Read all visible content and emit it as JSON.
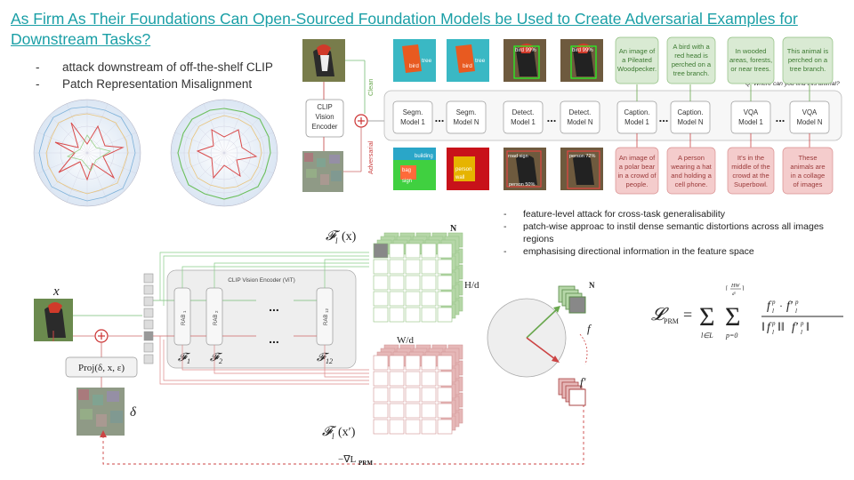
{
  "title": "As Firm As Their Foundations Can Open-Sourced Foundation Models be Used to Create Adversarial Examples for Downstream Tasks?",
  "bullets_top": [
    "attack downstream of off-the-shelf CLIP",
    "Patch Representation Misalignment"
  ],
  "bullets_mid": [
    "feature-level attack for cross-task generalisability",
    "patch-wise approac to instil dense semantic distortions across all images regions",
    "emphasising directional information in the feature space"
  ],
  "pipeline": {
    "clip_box": [
      "CLIP",
      "Vision",
      "Encoder"
    ],
    "clean_label": "Clean",
    "adversarial_label": "Adversarial",
    "question": "Q: Where can you find this animal?",
    "ellipsis": "...",
    "models": [
      {
        "name": "Segm.",
        "sub": "Model 1"
      },
      {
        "name": "Segm.",
        "sub": "Model N"
      },
      {
        "name": "Detect.",
        "sub": "Model 1"
      },
      {
        "name": "Detect.",
        "sub": "Model N"
      },
      {
        "name": "Caption.",
        "sub": "Model 1"
      },
      {
        "name": "Caption.",
        "sub": "Model N"
      },
      {
        "name": "VQA",
        "sub": "Model 1"
      },
      {
        "name": "VQA",
        "sub": "Model N"
      }
    ],
    "clean_outputs": [
      [
        "An image of",
        "a Pileated",
        "Woodpecker."
      ],
      [
        "A bird with a",
        "red head is",
        "perched on a",
        "tree branch."
      ],
      [
        "In wooded",
        "areas, forests,",
        "or near trees."
      ],
      [
        "This animal is",
        "perched on a",
        "tree branch."
      ]
    ],
    "adv_outputs": [
      [
        "An image of",
        "a polar bear",
        "in a crowd of",
        "people."
      ],
      [
        "A person",
        "wearing a hat",
        "and holding a",
        "cell phone."
      ],
      [
        "It's in the",
        "middle of the",
        "crowd at the",
        "Superbowl."
      ],
      [
        "These",
        "animals are",
        "in a collage",
        "of images"
      ]
    ],
    "seg_clean_labels": [
      "tree",
      "bird",
      "tree",
      "bird"
    ],
    "det_clean_labels": [
      "bird 99%",
      "bird 99%"
    ],
    "seg_adv_labels": [
      "building",
      "bag",
      "sign",
      "person",
      "wall"
    ],
    "det_adv_labels": [
      "road sign",
      "person 50%",
      "person 72%"
    ]
  },
  "architecture": {
    "input_var": "x",
    "perturb_var": "δ",
    "proj": "Proj(δ, x, ε)",
    "encoder_title": "CLIP Vision Encoder (ViT)",
    "rabs": [
      "RAB",
      "RAB",
      "RAB"
    ],
    "rab_subs": [
      "1",
      "2",
      "12"
    ],
    "feature_labels": [
      "𝓕",
      "𝓕",
      "𝓕"
    ],
    "feature_subs": [
      "1",
      "2",
      "12"
    ],
    "clean_feat": "𝓕",
    "adv_feat": "𝓕",
    "feat_sub": "l",
    "clean_arg": "(x)",
    "adv_arg": "(x′)",
    "N": "N",
    "H": "H/d",
    "W": "W/d",
    "f": "f",
    "f_prime": "f′",
    "grad": "−∇L",
    "grad_sub": "PRM"
  },
  "formula": {
    "lhs": "𝓛",
    "lhs_sub": "PRM",
    "sum_l": "l∈L",
    "sum_p_top": "HW",
    "sum_p_den": "d²",
    "sum_p_bot": "p=0"
  },
  "colors": {
    "teal": "#1a9fa6",
    "green": "#6aa84f",
    "red": "#cc4444",
    "green_box": "#d9ead3",
    "red_box": "#f4cccc"
  }
}
